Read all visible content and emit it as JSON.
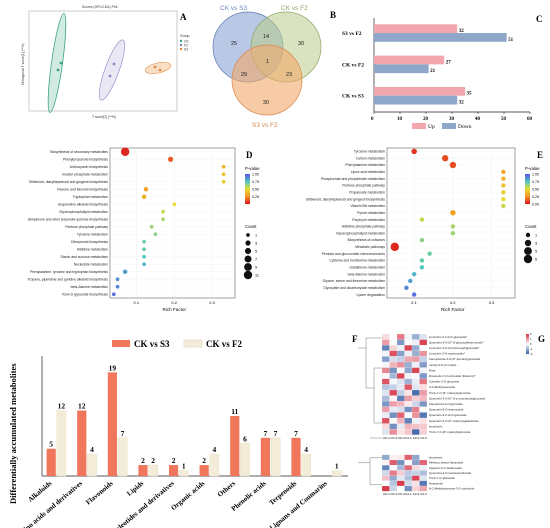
{
  "figure": {
    "panel_labels": [
      "A",
      "B",
      "C",
      "D",
      "E",
      "F",
      "G"
    ],
    "colors": {
      "up": "#f2a7ae",
      "down": "#8ea7c8",
      "s3": "#f0765c",
      "f2": "#f3ecd8",
      "venn_a": "#7f9bd0",
      "venn_b": "#b9cc8a",
      "venn_c": "#f0a86a"
    }
  },
  "panelA": {
    "title": "Scores (OPLS-DA) Plot",
    "xlabel": "T score[1] (**%)",
    "ylabel": "Orthogonal T score[1] (**%)",
    "legend_title": "Group",
    "legend": [
      "CK",
      "F2",
      "S3"
    ]
  },
  "chart_data": [
    {
      "type": "venn",
      "sets": [
        "CK vs S3",
        "CK vs F2",
        "S3 vs F2"
      ],
      "regions": [
        {
          "sets": [
            "CK vs S3"
          ],
          "value": 25
        },
        {
          "sets": [
            "CK vs F2"
          ],
          "value": 30
        },
        {
          "sets": [
            "S3 vs F2"
          ],
          "value": 30
        },
        {
          "sets": [
            "CK vs S3",
            "CK vs F2"
          ],
          "value": 14
        },
        {
          "sets": [
            "CK vs S3",
            "S3 vs F2"
          ],
          "value": 29
        },
        {
          "sets": [
            "CK vs F2",
            "S3 vs F2"
          ],
          "value": 23
        },
        {
          "sets": [
            "CK vs S3",
            "CK vs F2",
            "S3 vs F2"
          ],
          "value": 1
        }
      ]
    },
    {
      "type": "bar",
      "orientation": "horizontal",
      "categories": [
        "S3 vs F2",
        "CK vs F2",
        "CK vs S3"
      ],
      "series": [
        {
          "name": "Up",
          "values": [
            32,
            27,
            35
          ]
        },
        {
          "name": "Down",
          "values": [
            51,
            21,
            32
          ]
        }
      ],
      "xlim": [
        0,
        60
      ],
      "xticks": [
        "0",
        "10",
        "20",
        "30",
        "40",
        "50",
        "60"
      ],
      "legend": [
        "Up",
        "Down"
      ]
    },
    {
      "type": "scatter",
      "subtype": "kegg-enrichment",
      "pathways": [
        "Biosynthesis of secondary metabolites",
        "Phenylpropanoid biosynthesis",
        "Anthocyanin biosynthesis",
        "Inositol phosphate metabolism",
        "Stilbenoid, diarylheptanoid and gingerol biosynthesis",
        "Flavone and flavonol biosynthesis",
        "Tryptophan metabolism",
        "Isoquinoline alkaloid biosynthesis",
        "Glycerophospholipid metabolism",
        "Ubiquinone and other terpenoid-quinone biosynthesis",
        "Pentose phosphate pathway",
        "Tyrosine metabolism",
        "Diterpenoid biosynthesis",
        "Histidine metabolism",
        "Starch and sucrose metabolism",
        "Nucleotide metabolism",
        "Phenylalanine, tyrosine and tryptophan biosynthesis",
        "Tropane, piperidine and pyridine alkaloid biosynthesis",
        "beta-Alanine metabolism",
        "Toxin D-glycoside biosynthesis"
      ],
      "rich_factor": [
        0.07,
        0.19,
        0.33,
        0.33,
        0.33,
        0.125,
        0.12,
        0.2,
        0.17,
        0.17,
        0.14,
        0.15,
        0.12,
        0.12,
        0.12,
        0.12,
        0.07,
        0.05,
        0.05,
        0.04
      ],
      "count": [
        11,
        3,
        1,
        1,
        1,
        2,
        2,
        1,
        1,
        1,
        1,
        1,
        1,
        1,
        1,
        1,
        2,
        1,
        1,
        1
      ],
      "p_value": [
        0.02,
        0.12,
        0.35,
        0.4,
        0.45,
        0.3,
        0.35,
        0.5,
        0.55,
        0.6,
        0.62,
        0.65,
        0.7,
        0.72,
        0.75,
        0.8,
        0.85,
        0.88,
        0.9,
        0.95
      ],
      "xlabel": "Rich Factor",
      "xticks": [
        "0.1",
        "0.2",
        "0.3"
      ],
      "xlim": [
        0.03,
        0.36
      ],
      "colorbar_title": "P-value",
      "colorbar_ticks": [
        "1.00",
        "0.75",
        "0.50",
        "0.25"
      ],
      "size_title": "Count",
      "size_legend": [
        "1",
        "3",
        "5",
        "7",
        "9",
        "11"
      ]
    },
    {
      "type": "scatter",
      "subtype": "kegg-enrichment",
      "pathways": [
        "Tyrosine metabolism",
        "Carbon metabolism",
        "Phenylalanine metabolism",
        "Lipoic acid metabolism",
        "Phosphonate and phosphinate metabolism",
        "Pentose phosphate pathway",
        "Propanoate metabolism",
        "Stilbenoid, diarylheptanoid and gingerol biosynthesis",
        "Vitamin B6 metabolism",
        "Pyrine metabolism",
        "Porphyrin metabolism",
        "Histidine phosphate pathway",
        "Glycerophospholipid metabolism",
        "Biosynthesis of cofactors",
        "Metabolic pathways",
        "Pentose and glucuronate interconversions",
        "Cysteine and methionine metabolism",
        "Glutathione metabolism",
        "beta-Alanine metabolism",
        "Glycine, serine and threonine metabolism",
        "Glyoxylate and dicarboxylate metabolism",
        "Lysine degradation"
      ],
      "rich_factor": [
        0.1,
        0.18,
        0.2,
        0.33,
        0.33,
        0.33,
        0.33,
        0.33,
        0.33,
        0.2,
        0.12,
        0.2,
        0.2,
        0.12,
        0.05,
        0.14,
        0.12,
        0.12,
        0.1,
        0.09,
        0.08,
        0.1
      ],
      "count": [
        2,
        3,
        3,
        1,
        1,
        1,
        1,
        1,
        1,
        2,
        1,
        1,
        1,
        1,
        6,
        1,
        1,
        1,
        1,
        1,
        1,
        1
      ],
      "p_value": [
        0.05,
        0.1,
        0.1,
        0.3,
        0.35,
        0.4,
        0.45,
        0.5,
        0.55,
        0.3,
        0.55,
        0.6,
        0.62,
        0.65,
        0.02,
        0.7,
        0.72,
        0.75,
        0.8,
        0.85,
        0.9,
        0.95
      ],
      "xlabel": "Rich Factor",
      "xticks": [
        "0.1",
        "0.2",
        "0.3"
      ],
      "xlim": [
        0.03,
        0.36
      ],
      "colorbar_title": "P-value",
      "colorbar_ticks": [
        "1.00",
        "0.75",
        "0.50",
        "0.25",
        "0.00"
      ],
      "size_title": "Count",
      "size_legend": [
        "1",
        "3",
        "5",
        "6"
      ]
    },
    {
      "type": "bar",
      "categories": [
        "Alkaloids",
        "Amino acids and derivatives",
        "Flavonoids",
        "Lipids",
        "Nucleotides and derivatives",
        "Organic acids",
        "Others",
        "Phenolic acids",
        "Terpenoids",
        "Lignans and Coumarins"
      ],
      "series": [
        {
          "name": "CK vs S3",
          "values": [
            5,
            12,
            19,
            2,
            2,
            2,
            11,
            7,
            7,
            0
          ]
        },
        {
          "name": "CK vs F2",
          "values": [
            12,
            4,
            7,
            2,
            1,
            4,
            6,
            7,
            4,
            1
          ]
        }
      ],
      "ylabel": "Differentially accumulated metabolites",
      "ylim": [
        0,
        22
      ],
      "legend": [
        "CK vs S3",
        "CK vs F2"
      ]
    },
    {
      "type": "heatmap",
      "columns": [
        "CK-1",
        "CK-2",
        "CK-3",
        "F2-1",
        "F2-2",
        "F2-3"
      ],
      "rows_top": [
        "Limocitrin-3,7-di-O-glucoside*",
        "Quercetin-3-O-(6\"-O-glucosyl)rhamnoside*",
        "Limocitrin-3-O-(6-rhamnosyl)glucoside*",
        "Limocitrin-3-O-sophoroside*",
        "Kaempferide-3-O-(6''-Feruloyl)glucoside",
        "methyl 4-O-(2-methyl...",
        "Rutin",
        "Diosmetin-7-O-rutinoside (Diosmin)*",
        "Cyanidin-3-O-glucoside",
        "3-O-Methylquercetin",
        "Tricin-7-O-(6''-malonyl)glucoside",
        "Quercetin-3-O-(6''-O-p-coumaroyl)glucoside",
        "Kaempferol-3-O-glucoside",
        "Quercetin-3-O-rhamnoside",
        "Quercetin-3,4'-di-O-glucoside",
        "Quercetin-3-O-(6''-malonyl)galactoside",
        "Isoorientin",
        "Tricin-7-O-(6''-malonyl)glucoside"
      ],
      "rows_bottom": [
        "Isoorientin",
        "Methoxy phenyl flavanoids",
        "Apigenin-6-C-arabinoside",
        "Quercetin-3-O-neohesperidoside",
        "Tricin-7-O-glucoside",
        "Hesperetin",
        "8-C-Methylquercetin-3-O-rutinoside"
      ],
      "color_scale": [
        "#3c64a8",
        "#ffffff",
        "#d7394a"
      ],
      "scale_ticks": [
        "2",
        "1",
        "0",
        "-1",
        "-2"
      ]
    }
  ]
}
